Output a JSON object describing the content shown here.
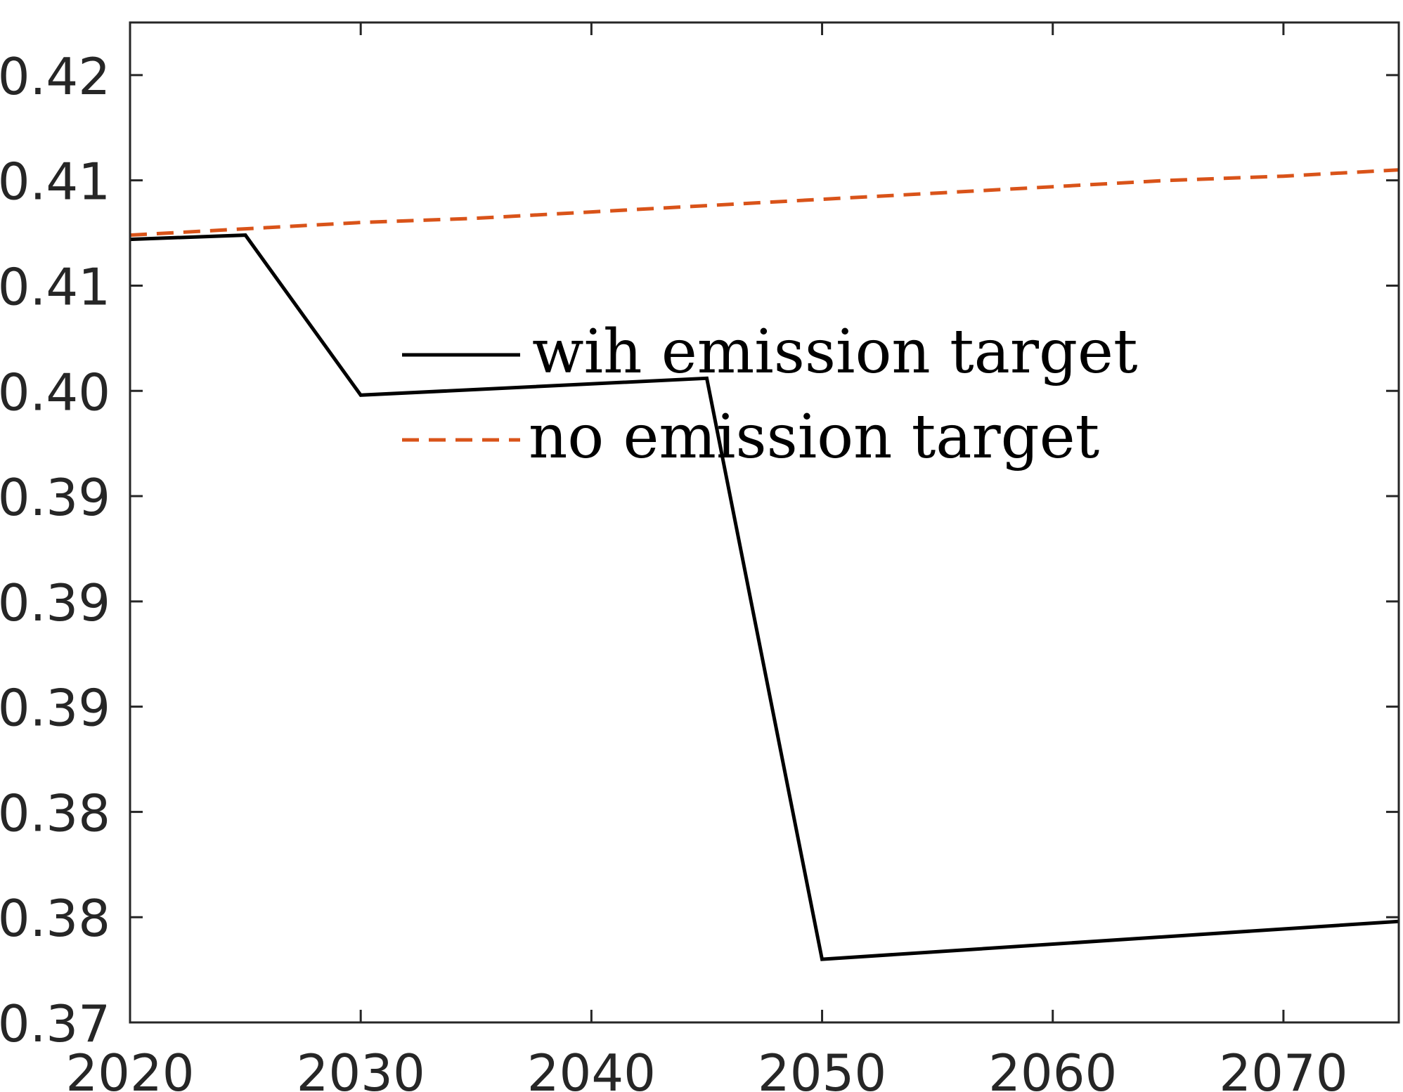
{
  "chart_data": {
    "type": "line",
    "title": "",
    "xlabel": "",
    "ylabel": "",
    "xlim": [
      2020,
      2075
    ],
    "ylim": [
      0.37,
      0.4175
    ],
    "grid": false,
    "legend_position": "center",
    "x_ticks": [
      2020,
      2030,
      2040,
      2050,
      2060,
      2070
    ],
    "x_tick_labels": [
      "2020",
      "2030",
      "2040",
      "2050",
      "2060",
      "2070"
    ],
    "y_ticks": [
      0.37,
      0.375,
      0.38,
      0.385,
      0.39,
      0.395,
      0.4,
      0.405,
      0.41,
      0.415
    ],
    "y_tick_labels": [
      "0.37",
      "0.38",
      "0.38",
      "0.39",
      "0.39",
      "0.39",
      "0.40",
      "0.41",
      "0.41",
      "0.42"
    ],
    "series": [
      {
        "name": "wih emission target",
        "color": "#000000",
        "style": "solid",
        "x": [
          2020,
          2025,
          2030,
          2045,
          2050,
          2075
        ],
        "y": [
          0.4072,
          0.4074,
          0.3998,
          0.4006,
          0.373,
          0.3748
        ]
      },
      {
        "name": "no emission target",
        "color": "#D95319",
        "style": "dashed",
        "x": [
          2020,
          2025,
          2030,
          2035,
          2040,
          2045,
          2050,
          2055,
          2060,
          2065,
          2070,
          2075
        ],
        "y": [
          0.4074,
          0.4077,
          0.408,
          0.4082,
          0.4085,
          0.4088,
          0.4091,
          0.4094,
          0.4097,
          0.41,
          0.4102,
          0.4105
        ]
      }
    ]
  }
}
